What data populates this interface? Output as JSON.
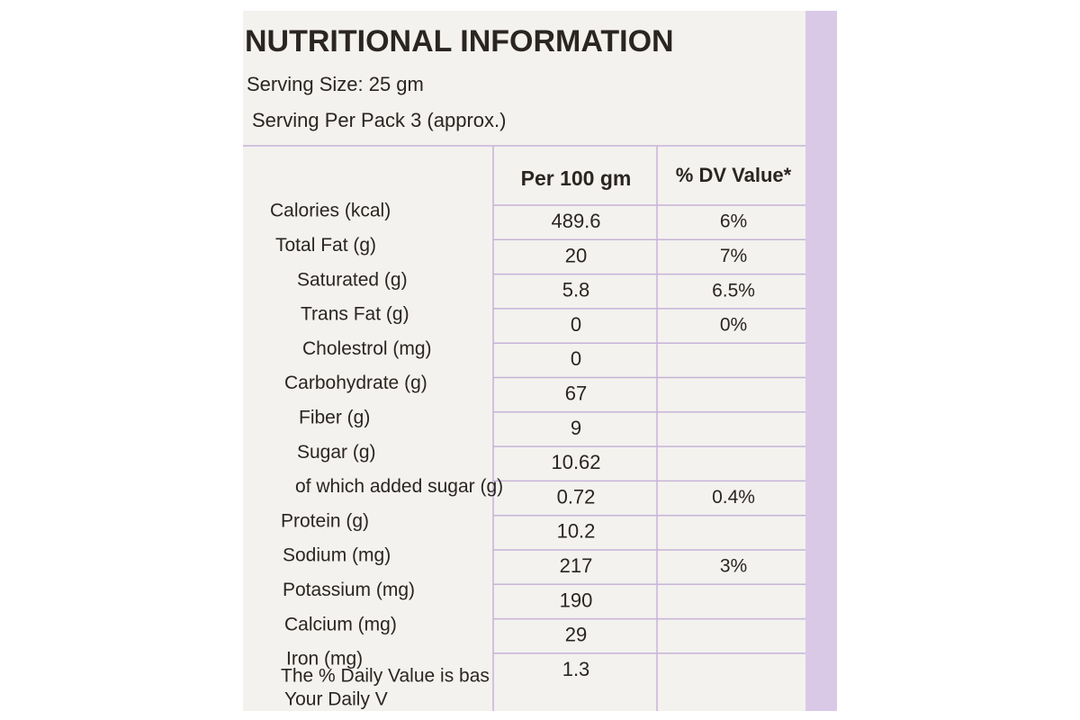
{
  "header": {
    "title": "NUTRITIONAL INFORMATION",
    "serving_size": "Serving Size: 25 gm",
    "servings_per_pack": "Serving Per Pack 3 (approx.)"
  },
  "table": {
    "columns": [
      "Per 100 gm",
      "% DV Value*"
    ],
    "rows": [
      {
        "name": "Calories (kcal)",
        "per_100": "489.6",
        "dv": "6%"
      },
      {
        "name": "Total Fat (g)",
        "per_100": "20",
        "dv": "7%"
      },
      {
        "name": "Saturated (g)",
        "per_100": "5.8",
        "dv": "6.5%"
      },
      {
        "name": "Trans Fat (g)",
        "per_100": "0",
        "dv": "0%"
      },
      {
        "name": "Cholestrol (mg)",
        "per_100": "0"
      },
      {
        "name": "Carbohydrate (g)",
        "per_100": "67"
      },
      {
        "name": "Fiber (g)",
        "per_100": "9"
      },
      {
        "name": "Sugar (g)",
        "per_100": "10.62"
      },
      {
        "name": "of which added sugar (g)",
        "per_100": "0.72",
        "dv": "0.4%"
      },
      {
        "name": "Protein (g)",
        "per_100": "10.2"
      },
      {
        "name": "Sodium (mg)",
        "per_100": "217",
        "dv": "3%"
      },
      {
        "name": "Potassium (mg)",
        "per_100": "190"
      },
      {
        "name": "Calcium (mg)",
        "per_100": "29"
      },
      {
        "name": "Iron (mg)",
        "per_100": "1.3"
      }
    ]
  },
  "footer": [
    "The % Daily Value is bas",
    "Your Daily V"
  ]
}
